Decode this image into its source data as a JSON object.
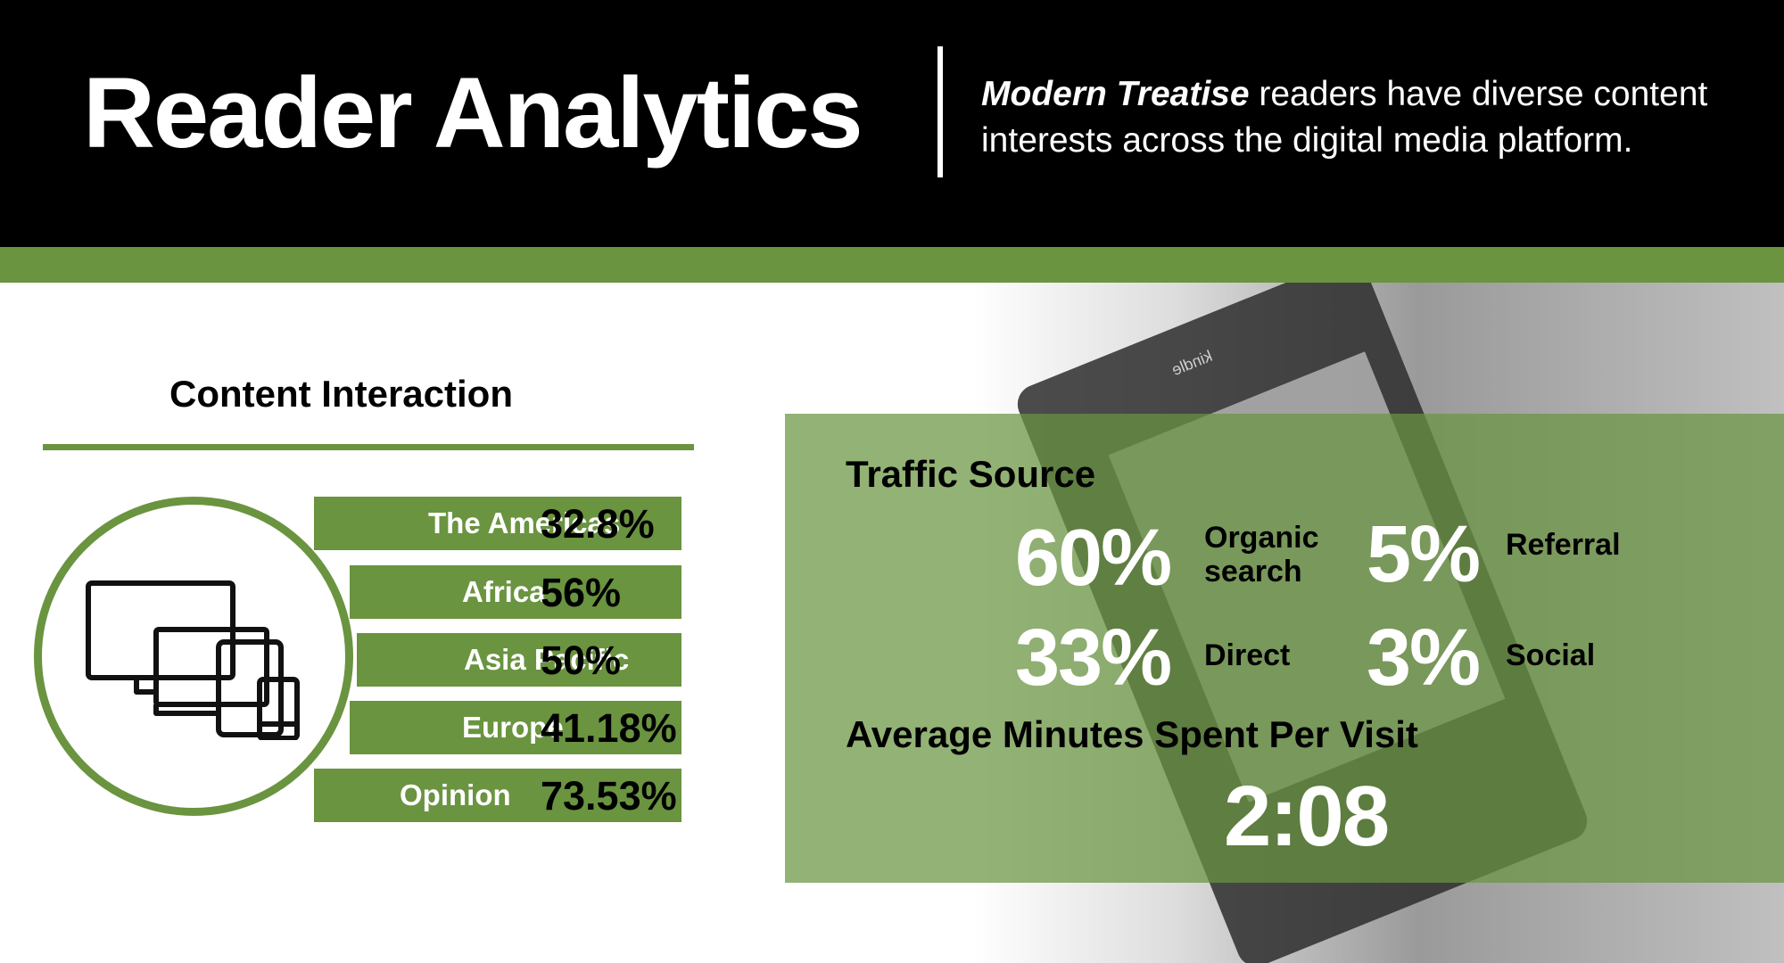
{
  "header": {
    "title": "Reader Analytics",
    "subtitle_brand": "Modern Treatise",
    "subtitle_rest": " readers have diverse content interests across the digital media platform."
  },
  "background_image": {
    "logo_text": "kindle"
  },
  "content_interaction": {
    "title": "Content Interaction",
    "icon": "devices-icon",
    "rows": [
      {
        "label": "The Americas",
        "value": "32.8%"
      },
      {
        "label": "Africa",
        "value": "56%"
      },
      {
        "label": "Asia Pacific",
        "value": "50%"
      },
      {
        "label": "Europe",
        "value": "41.18%"
      },
      {
        "label": "Opinion",
        "value": "73.53%"
      }
    ]
  },
  "traffic_source": {
    "title": "Traffic Source",
    "items": [
      {
        "value": "60%",
        "label_line1": "Organic",
        "label_line2": "search"
      },
      {
        "value": "5%",
        "label_line1": "Referral",
        "label_line2": ""
      },
      {
        "value": "33%",
        "label_line1": "Direct",
        "label_line2": ""
      },
      {
        "value": "3%",
        "label_line1": "Social",
        "label_line2": ""
      }
    ]
  },
  "average_visit": {
    "title": "Average Minutes Spent Per Visit",
    "value": "2:08"
  },
  "colors": {
    "accent_green": "#6a9440",
    "header_black": "#000000",
    "text_white": "#ffffff"
  }
}
